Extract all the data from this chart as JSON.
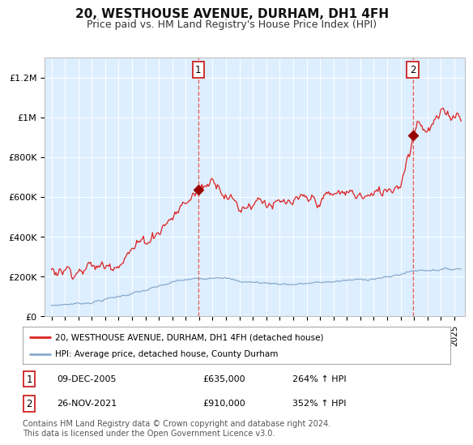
{
  "title": "20, WESTHOUSE AVENUE, DURHAM, DH1 4FH",
  "subtitle": "Price paid vs. HM Land Registry's House Price Index (HPI)",
  "title_fontsize": 11,
  "subtitle_fontsize": 9,
  "xlim": [
    1994.5,
    2025.8
  ],
  "ylim": [
    0,
    1300000
  ],
  "yticks": [
    0,
    200000,
    400000,
    600000,
    800000,
    1000000,
    1200000
  ],
  "ytick_labels": [
    "£0",
    "£200K",
    "£400K",
    "£600K",
    "£800K",
    "£1M",
    "£1.2M"
  ],
  "xtick_years": [
    1995,
    1996,
    1997,
    1998,
    1999,
    2000,
    2001,
    2002,
    2003,
    2004,
    2005,
    2006,
    2007,
    2008,
    2009,
    2010,
    2011,
    2012,
    2013,
    2014,
    2015,
    2016,
    2017,
    2018,
    2019,
    2020,
    2021,
    2022,
    2023,
    2024,
    2025
  ],
  "background_color": "#ffffff",
  "plot_bg_color": "#ddeeff",
  "grid_color": "#ffffff",
  "red_line_color": "#dd2222",
  "blue_line_color": "#88aacc",
  "marker_color": "#990000",
  "vline_color": "#dd4444",
  "vline1_x": 2005.92,
  "vline2_x": 2021.9,
  "marker1_x": 2005.92,
  "marker1_y": 635000,
  "marker2_x": 2021.9,
  "marker2_y": 910000,
  "label1": "1",
  "label2": "2",
  "legend_red": "20, WESTHOUSE AVENUE, DURHAM, DH1 4FH (detached house)",
  "legend_blue": "HPI: Average price, detached house, County Durham",
  "table_row1": [
    "1",
    "09-DEC-2005",
    "£635,000",
    "264% ↑ HPI"
  ],
  "table_row2": [
    "2",
    "26-NOV-2021",
    "£910,000",
    "352% ↑ HPI"
  ],
  "footer": "Contains HM Land Registry data © Crown copyright and database right 2024.\nThis data is licensed under the Open Government Licence v3.0.",
  "footer_fontsize": 7.0
}
